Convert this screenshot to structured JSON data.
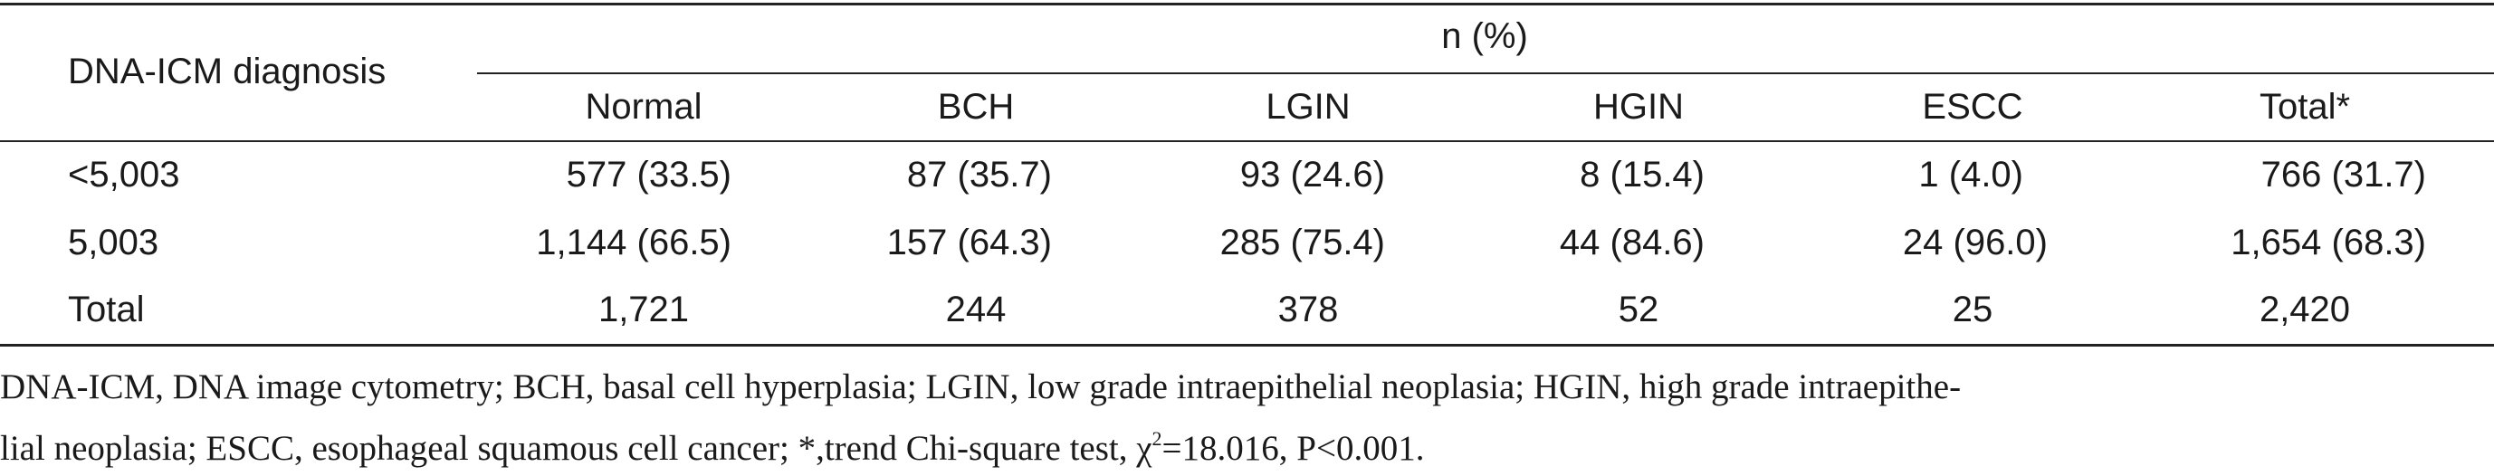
{
  "table": {
    "row_header_label": "DNA-ICM diagnosis",
    "group_header": "n (%)",
    "columns": [
      "Normal",
      "BCH",
      "LGIN",
      "HGIN",
      "ESCC",
      "Total*"
    ],
    "rows": [
      {
        "label": "<5,003",
        "cells": [
          "577 (33.5)",
          "87 (35.7)",
          "93 (24.6)",
          "8 (15.4)",
          "1 (4.0)",
          "766 (31.7)"
        ]
      },
      {
        "label": "5,003",
        "cells": [
          "1,144 (66.5)",
          "157 (64.3)",
          "285 (75.4)",
          "44 (84.6)",
          "24 (96.0)",
          "1,654 (68.3)"
        ]
      },
      {
        "label": "Total",
        "cells": [
          "1,721",
          "244",
          "378",
          "52",
          "25",
          "2,420"
        ]
      }
    ]
  },
  "footnote": {
    "line1": "DNA-ICM, DNA image cytometry; BCH, basal cell hyperplasia; LGIN, low grade intraepithelial neoplasia; HGIN, high grade intraepithe-",
    "line2_pre": "lial neoplasia; ESCC, esophageal squamous cell cancer; *,trend Chi-square test, χ",
    "line2_sup": "2",
    "line2_post": "=18.016, P<0.001."
  }
}
